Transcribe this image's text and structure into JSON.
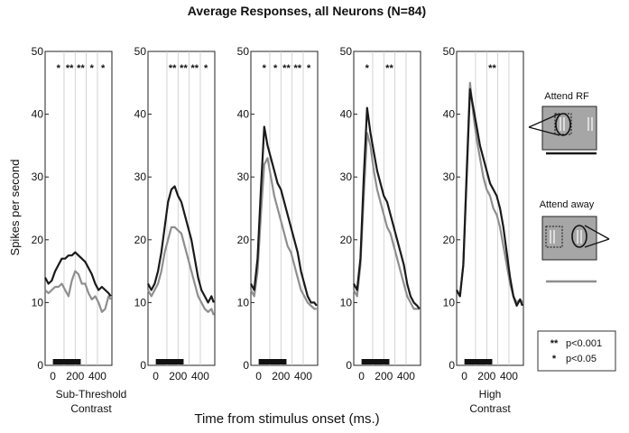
{
  "chart_data": {
    "type": "line",
    "title": "Average Responses, all Neurons (N=84)",
    "ylabel": "Spikes per second",
    "xlabel": "Time from stimulus onset (ms.)",
    "ylim": [
      0,
      50
    ],
    "xlim": [
      -70,
      530
    ],
    "yticks": [
      0,
      10,
      20,
      30,
      40,
      50
    ],
    "xticks": [
      0,
      200,
      400
    ],
    "grid_x": [
      100,
      200,
      300,
      400
    ],
    "stimulus_bar": [
      0,
      250
    ],
    "series_styles": [
      {
        "key": "attend_rf",
        "color": "#1a1a1a",
        "width": 2.2
      },
      {
        "key": "attend_away",
        "color": "#8e8e8e",
        "width": 2.2
      }
    ],
    "panels": [
      {
        "label_lines": [
          "Sub-Threshold",
          "Contrast"
        ],
        "stars": [
          {
            "t": 50,
            "s": "*"
          },
          {
            "t": 150,
            "s": "**"
          },
          {
            "t": 250,
            "s": "**"
          },
          {
            "t": 350,
            "s": "*"
          },
          {
            "t": 450,
            "s": "*"
          }
        ],
        "x": [
          -70,
          -40,
          -10,
          20,
          50,
          80,
          110,
          140,
          170,
          200,
          230,
          260,
          290,
          320,
          350,
          380,
          410,
          440,
          470,
          500,
          520
        ],
        "attend_rf": [
          14,
          13,
          13.5,
          15,
          16,
          17,
          17,
          17.5,
          17.5,
          18,
          17.5,
          17,
          16.5,
          15.5,
          14.5,
          13,
          12,
          12.5,
          12,
          11.5,
          11
        ],
        "attend_away": [
          12,
          11.5,
          12,
          12.5,
          12.5,
          13,
          12,
          11,
          13.5,
          15,
          14.5,
          13,
          13,
          11.5,
          10.5,
          11,
          10,
          8.5,
          9,
          11,
          10.5
        ]
      },
      {
        "label_lines": [],
        "stars": [
          {
            "t": 150,
            "s": "**"
          },
          {
            "t": 250,
            "s": "**"
          },
          {
            "t": 350,
            "s": "**"
          },
          {
            "t": 450,
            "s": "*"
          }
        ],
        "x": [
          -70,
          -40,
          -10,
          20,
          50,
          80,
          110,
          140,
          170,
          200,
          230,
          260,
          290,
          320,
          350,
          380,
          410,
          440,
          470,
          500,
          520
        ],
        "attend_rf": [
          13,
          12,
          13,
          15,
          18,
          22,
          26,
          28,
          28.5,
          27,
          26,
          24,
          22,
          20,
          17,
          14,
          12,
          11,
          10,
          11,
          10
        ],
        "attend_away": [
          12,
          11,
          12,
          13,
          15,
          18,
          20,
          22,
          22,
          21.5,
          21,
          19,
          17,
          15,
          13,
          11,
          10,
          9,
          8.5,
          9,
          8
        ]
      },
      {
        "label_lines": [],
        "stars": [
          {
            "t": 50,
            "s": "*"
          },
          {
            "t": 150,
            "s": "*"
          },
          {
            "t": 250,
            "s": "**"
          },
          {
            "t": 350,
            "s": "**"
          },
          {
            "t": 450,
            "s": "*"
          }
        ],
        "x": [
          -70,
          -40,
          -10,
          20,
          50,
          80,
          110,
          140,
          170,
          200,
          230,
          260,
          290,
          320,
          350,
          380,
          410,
          440,
          470,
          500,
          520
        ],
        "attend_rf": [
          13,
          12,
          17,
          28,
          38,
          35,
          33,
          31,
          29,
          28,
          26,
          24,
          22,
          20,
          18,
          15,
          13,
          11,
          10,
          10,
          9.5
        ],
        "attend_away": [
          12,
          11,
          15,
          24,
          32,
          33,
          30,
          27,
          25,
          23,
          21,
          19,
          18,
          16,
          14,
          12,
          11,
          10,
          9.5,
          9,
          9
        ]
      },
      {
        "label_lines": [],
        "stars": [
          {
            "t": 50,
            "s": "*"
          },
          {
            "t": 250,
            "s": "**"
          }
        ],
        "x": [
          -70,
          -40,
          -10,
          20,
          50,
          80,
          110,
          140,
          170,
          200,
          230,
          260,
          290,
          320,
          350,
          380,
          410,
          440,
          470,
          500,
          520
        ],
        "attend_rf": [
          13,
          12,
          17,
          30,
          41,
          37,
          34,
          31,
          29,
          27,
          26,
          24,
          22,
          20,
          18,
          16,
          13,
          11,
          10,
          9.5,
          9
        ],
        "attend_away": [
          12,
          11,
          16,
          27,
          37,
          35,
          31,
          28,
          26,
          24,
          22,
          21,
          19,
          17,
          15,
          13,
          11,
          10,
          9,
          9,
          9
        ]
      },
      {
        "label_lines": [
          "High",
          "Contrast"
        ],
        "stars": [
          {
            "t": 250,
            "s": "**"
          }
        ],
        "x": [
          -70,
          -40,
          -10,
          20,
          50,
          80,
          110,
          140,
          170,
          200,
          230,
          260,
          290,
          320,
          350,
          380,
          410,
          440,
          470,
          500,
          520
        ],
        "attend_rf": [
          12,
          11,
          16,
          30,
          44,
          41,
          38,
          35,
          33,
          31,
          29,
          28,
          27,
          25,
          22,
          18,
          14,
          11,
          9.5,
          10.5,
          9.5
        ],
        "attend_away": [
          12,
          11,
          16,
          31,
          45,
          40,
          36,
          33,
          30,
          28,
          27,
          25,
          24,
          22,
          19,
          16,
          13,
          11,
          10,
          10.5,
          10
        ]
      }
    ]
  },
  "legend": {
    "attend_rf_label": "Attend RF",
    "attend_away_label": "Attend away",
    "sig_double_symbol": "**",
    "sig_double_label": "p<0.001",
    "sig_single_symbol": "*",
    "sig_single_label": "p<0.05"
  }
}
